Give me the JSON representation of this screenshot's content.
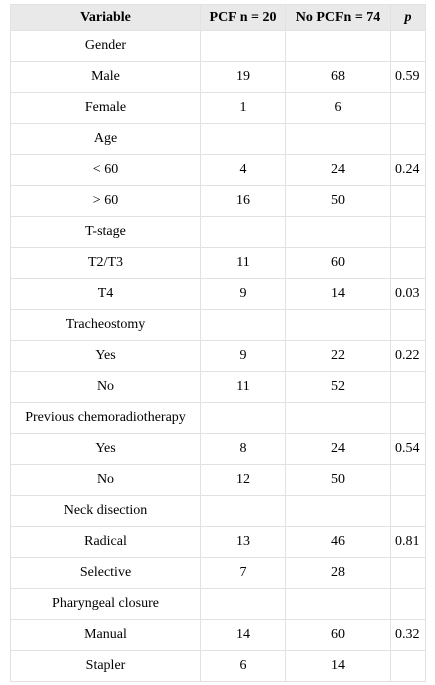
{
  "table": {
    "header": [
      "Variable",
      "PCF n = 20",
      "No PCFn = 74",
      "p"
    ],
    "rows": [
      {
        "label": "Gender"
      },
      {
        "label": "Male",
        "pcf": 19,
        "no_pcf": 68,
        "p": 0.59
      },
      {
        "label": "Female",
        "pcf": 1,
        "no_pcf": 6
      },
      {
        "label": "Age"
      },
      {
        "label": "< 60",
        "pcf": 4,
        "no_pcf": 24,
        "p": 0.24
      },
      {
        "label": "> 60",
        "pcf": 16,
        "no_pcf": 50
      },
      {
        "label": "T-stage"
      },
      {
        "label": "T2/T3",
        "pcf": 11,
        "no_pcf": 60
      },
      {
        "label": "T4",
        "pcf": 9,
        "no_pcf": 14,
        "p": 0.03
      },
      {
        "label": "Tracheostomy"
      },
      {
        "label": "Yes",
        "pcf": 9,
        "no_pcf": 22,
        "p": 0.22
      },
      {
        "label": "No",
        "pcf": 11,
        "no_pcf": 52
      },
      {
        "label": "Previous chemoradiotherapy"
      },
      {
        "label": "Yes",
        "pcf": 8,
        "no_pcf": 24,
        "p": 0.54
      },
      {
        "label": "No",
        "pcf": 12,
        "no_pcf": 50
      },
      {
        "label": "Neck disection"
      },
      {
        "label": "Radical",
        "pcf": 13,
        "no_pcf": 46,
        "p": 0.81
      },
      {
        "label": "Selective",
        "pcf": 7,
        "no_pcf": 28
      },
      {
        "label": "Pharyngeal closure"
      },
      {
        "label": "Manual",
        "pcf": 14,
        "no_pcf": 60,
        "p": 0.32
      },
      {
        "label": "Stapler",
        "pcf": 6,
        "no_pcf": 14
      }
    ]
  }
}
